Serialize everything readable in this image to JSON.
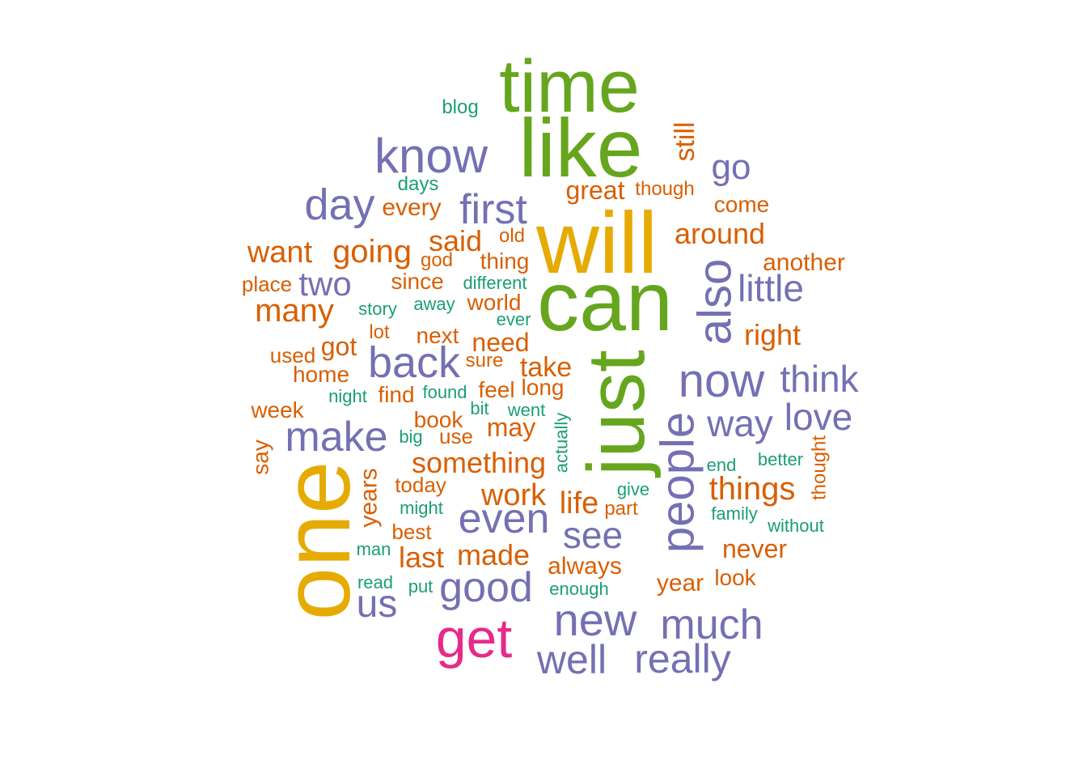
{
  "colors": {
    "green": "#66a61e",
    "gold": "#e6ab02",
    "pink": "#e7298a",
    "purple": "#7570b3",
    "orange": "#d95f02",
    "teal": "#1b9e77"
  },
  "chart_data": {
    "type": "wordcloud",
    "words": [
      {
        "text": "time",
        "color": "green",
        "rotated": false
      },
      {
        "text": "like",
        "color": "green",
        "rotated": false
      },
      {
        "text": "will",
        "color": "gold",
        "rotated": false
      },
      {
        "text": "can",
        "color": "green",
        "rotated": false
      },
      {
        "text": "just",
        "color": "green",
        "rotated": true
      },
      {
        "text": "one",
        "color": "gold",
        "rotated": true
      },
      {
        "text": "get",
        "color": "pink",
        "rotated": false
      },
      {
        "text": "know",
        "color": "purple",
        "rotated": false
      },
      {
        "text": "now",
        "color": "purple",
        "rotated": false
      },
      {
        "text": "people",
        "color": "purple",
        "rotated": true
      },
      {
        "text": "also",
        "color": "purple",
        "rotated": true
      },
      {
        "text": "new",
        "color": "purple",
        "rotated": false
      },
      {
        "text": "much",
        "color": "purple",
        "rotated": false
      },
      {
        "text": "back",
        "color": "purple",
        "rotated": false
      },
      {
        "text": "make",
        "color": "purple",
        "rotated": false
      },
      {
        "text": "even",
        "color": "purple",
        "rotated": false
      },
      {
        "text": "good",
        "color": "purple",
        "rotated": false
      },
      {
        "text": "really",
        "color": "purple",
        "rotated": false
      },
      {
        "text": "well",
        "color": "purple",
        "rotated": false
      },
      {
        "text": "day",
        "color": "purple",
        "rotated": false
      },
      {
        "text": "first",
        "color": "purple",
        "rotated": false
      },
      {
        "text": "think",
        "color": "purple",
        "rotated": false
      },
      {
        "text": "love",
        "color": "purple",
        "rotated": false
      },
      {
        "text": "way",
        "color": "purple",
        "rotated": false
      },
      {
        "text": "see",
        "color": "purple",
        "rotated": false
      },
      {
        "text": "little",
        "color": "purple",
        "rotated": false
      },
      {
        "text": "go",
        "color": "purple",
        "rotated": false
      },
      {
        "text": "two",
        "color": "purple",
        "rotated": false
      },
      {
        "text": "us",
        "color": "purple",
        "rotated": false
      },
      {
        "text": "going",
        "color": "orange",
        "rotated": false
      },
      {
        "text": "want",
        "color": "orange",
        "rotated": false
      },
      {
        "text": "many",
        "color": "orange",
        "rotated": false
      },
      {
        "text": "things",
        "color": "orange",
        "rotated": false
      },
      {
        "text": "something",
        "color": "orange",
        "rotated": false
      },
      {
        "text": "work",
        "color": "orange",
        "rotated": false
      },
      {
        "text": "around",
        "color": "orange",
        "rotated": false
      },
      {
        "text": "said",
        "color": "orange",
        "rotated": false
      },
      {
        "text": "life",
        "color": "orange",
        "rotated": false
      },
      {
        "text": "made",
        "color": "orange",
        "rotated": false
      },
      {
        "text": "last",
        "color": "orange",
        "rotated": false
      },
      {
        "text": "right",
        "color": "orange",
        "rotated": false
      },
      {
        "text": "take",
        "color": "orange",
        "rotated": false
      },
      {
        "text": "need",
        "color": "orange",
        "rotated": false
      },
      {
        "text": "great",
        "color": "orange",
        "rotated": false
      },
      {
        "text": "still",
        "color": "orange",
        "rotated": true
      },
      {
        "text": "got",
        "color": "orange",
        "rotated": false
      },
      {
        "text": "never",
        "color": "orange",
        "rotated": false
      },
      {
        "text": "every",
        "color": "orange",
        "rotated": false
      },
      {
        "text": "another",
        "color": "orange",
        "rotated": false
      },
      {
        "text": "year",
        "color": "orange",
        "rotated": false
      },
      {
        "text": "always",
        "color": "orange",
        "rotated": false
      },
      {
        "text": "years",
        "color": "orange",
        "rotated": true
      },
      {
        "text": "may",
        "color": "orange",
        "rotated": false
      },
      {
        "text": "week",
        "color": "orange",
        "rotated": false
      },
      {
        "text": "home",
        "color": "orange",
        "rotated": false
      },
      {
        "text": "come",
        "color": "orange",
        "rotated": false
      },
      {
        "text": "long",
        "color": "orange",
        "rotated": false
      },
      {
        "text": "feel",
        "color": "orange",
        "rotated": false
      },
      {
        "text": "find",
        "color": "orange",
        "rotated": false
      },
      {
        "text": "book",
        "color": "orange",
        "rotated": false
      },
      {
        "text": "world",
        "color": "orange",
        "rotated": false
      },
      {
        "text": "next",
        "color": "orange",
        "rotated": false
      },
      {
        "text": "thing",
        "color": "orange",
        "rotated": false
      },
      {
        "text": "since",
        "color": "orange",
        "rotated": false
      },
      {
        "text": "look",
        "color": "orange",
        "rotated": false
      },
      {
        "text": "today",
        "color": "orange",
        "rotated": false
      },
      {
        "text": "best",
        "color": "orange",
        "rotated": false
      },
      {
        "text": "say",
        "color": "orange",
        "rotated": true
      },
      {
        "text": "used",
        "color": "orange",
        "rotated": false
      },
      {
        "text": "place",
        "color": "orange",
        "rotated": false
      },
      {
        "text": "use",
        "color": "orange",
        "rotated": false
      },
      {
        "text": "sure",
        "color": "orange",
        "rotated": false
      },
      {
        "text": "though",
        "color": "orange",
        "rotated": false
      },
      {
        "text": "part",
        "color": "orange",
        "rotated": false
      },
      {
        "text": "thought",
        "color": "orange",
        "rotated": true
      },
      {
        "text": "lot",
        "color": "orange",
        "rotated": false
      },
      {
        "text": "god",
        "color": "orange",
        "rotated": false
      },
      {
        "text": "old",
        "color": "orange",
        "rotated": false
      },
      {
        "text": "blog",
        "color": "teal",
        "rotated": false
      },
      {
        "text": "days",
        "color": "teal",
        "rotated": false
      },
      {
        "text": "different",
        "color": "teal",
        "rotated": false
      },
      {
        "text": "story",
        "color": "teal",
        "rotated": false
      },
      {
        "text": "away",
        "color": "teal",
        "rotated": false
      },
      {
        "text": "ever",
        "color": "teal",
        "rotated": false
      },
      {
        "text": "night",
        "color": "teal",
        "rotated": false
      },
      {
        "text": "found",
        "color": "teal",
        "rotated": false
      },
      {
        "text": "bit",
        "color": "teal",
        "rotated": false
      },
      {
        "text": "went",
        "color": "teal",
        "rotated": false
      },
      {
        "text": "actually",
        "color": "teal",
        "rotated": true
      },
      {
        "text": "big",
        "color": "teal",
        "rotated": false
      },
      {
        "text": "end",
        "color": "teal",
        "rotated": false
      },
      {
        "text": "better",
        "color": "teal",
        "rotated": false
      },
      {
        "text": "give",
        "color": "teal",
        "rotated": false
      },
      {
        "text": "family",
        "color": "teal",
        "rotated": false
      },
      {
        "text": "without",
        "color": "teal",
        "rotated": false
      },
      {
        "text": "might",
        "color": "teal",
        "rotated": false
      },
      {
        "text": "man",
        "color": "teal",
        "rotated": false
      },
      {
        "text": "read",
        "color": "teal",
        "rotated": false
      },
      {
        "text": "put",
        "color": "teal",
        "rotated": false
      },
      {
        "text": "enough",
        "color": "teal",
        "rotated": false
      }
    ]
  }
}
